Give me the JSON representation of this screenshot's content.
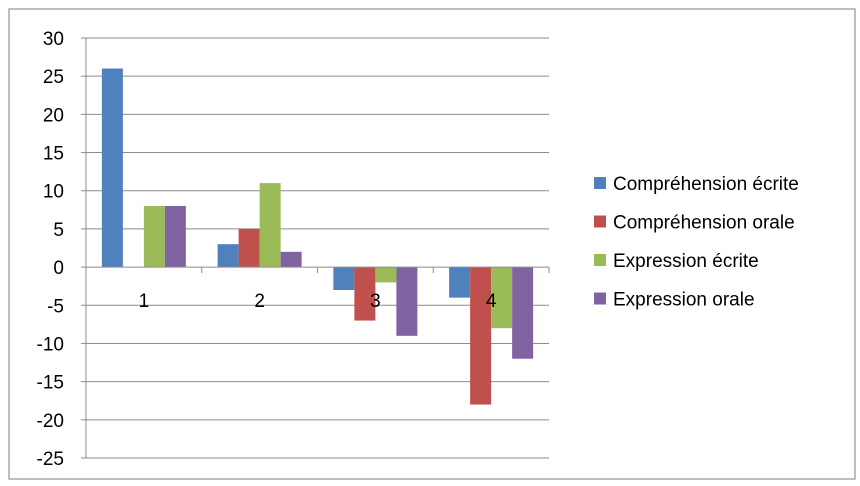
{
  "chart_data": {
    "type": "bar",
    "title": "",
    "xlabel": "",
    "ylabel": "",
    "categories": [
      "1",
      "2",
      "3",
      "4"
    ],
    "ylim": [
      -25,
      30
    ],
    "yticks": [
      30,
      25,
      20,
      15,
      10,
      5,
      0,
      -5,
      -10,
      -15,
      -20,
      -25
    ],
    "grid": true,
    "legend_position": "right",
    "series": [
      {
        "name": "Compréhension écrite",
        "color": "#4F81BD",
        "values": [
          26,
          3,
          -3,
          -4
        ]
      },
      {
        "name": "Compréhension orale",
        "color": "#C0504D",
        "values": [
          0,
          5,
          -7,
          -18
        ]
      },
      {
        "name": "Expression écrite",
        "color": "#9BBB59",
        "values": [
          8,
          11,
          -2,
          -8
        ]
      },
      {
        "name": "Expression orale",
        "color": "#8064A2",
        "values": [
          8,
          2,
          -9,
          -12
        ]
      }
    ]
  }
}
